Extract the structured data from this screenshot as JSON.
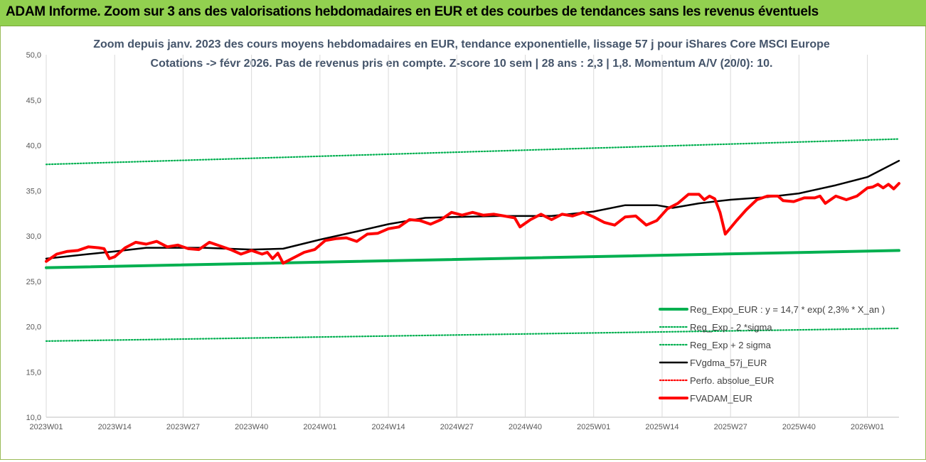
{
  "header": {
    "title": "ADAM Informe. Zoom sur 3 ans des valorisations hebdomadaires en EUR et des courbes de tendances sans les revenus éventuels"
  },
  "chart_data": {
    "type": "line",
    "title": "Zoom depuis janv. 2023 des cours moyens hebdomadaires en EUR, tendance exponentielle, lissage 57 j pour iShares Core MSCI Europe",
    "subtitle": "Cotations -> févr 2026. Pas de revenus pris en compte. Z-score 10 sem | 28 ans : 2,3 | 1,8. Momentum A/V (20/0): 10.",
    "xlabel": "",
    "ylabel": "",
    "ylim": [
      10,
      50
    ],
    "y_ticks": [
      "10,0",
      "15,0",
      "20,0",
      "25,0",
      "30,0",
      "35,0",
      "40,0",
      "45,0",
      "50,0"
    ],
    "x_tick_labels": [
      "2023W01",
      "2023W14",
      "2023W27",
      "2023W40",
      "2024W01",
      "2024W14",
      "2024W27",
      "2024W40",
      "2025W01",
      "2025W14",
      "2025W27",
      "2025W40",
      "2026W01"
    ],
    "grid": "vertical",
    "legend_position": "bottom-right",
    "x_weeks_total": 163,
    "series": [
      {
        "name": "Reg_Expo_EUR : y = 14,7 * exp( 2,3% *  X_an )",
        "color": "#00b050",
        "style": "solid-thick",
        "points": [
          [
            0,
            26.5
          ],
          [
            162,
            28.4
          ]
        ]
      },
      {
        "name": "Reg_Exp - 2 *sigma",
        "color": "#00b050",
        "style": "dotted",
        "points": [
          [
            0,
            18.4
          ],
          [
            162,
            19.8
          ]
        ]
      },
      {
        "name": "Reg_Exp + 2 sigma",
        "color": "#00b050",
        "style": "dotted",
        "points": [
          [
            0,
            37.9
          ],
          [
            162,
            40.7
          ]
        ]
      },
      {
        "name": "FVgdma_57j_EUR",
        "color": "#000000",
        "style": "solid",
        "points": [
          [
            0,
            27.5
          ],
          [
            8,
            28.0
          ],
          [
            13,
            28.3
          ],
          [
            19,
            28.7
          ],
          [
            30,
            28.7
          ],
          [
            39,
            28.5
          ],
          [
            45,
            28.6
          ],
          [
            52,
            29.6
          ],
          [
            59,
            30.5
          ],
          [
            65,
            31.3
          ],
          [
            72,
            32.0
          ],
          [
            78,
            32.1
          ],
          [
            86,
            32.2
          ],
          [
            96,
            32.2
          ],
          [
            104,
            32.7
          ],
          [
            110,
            33.4
          ],
          [
            116,
            33.4
          ],
          [
            119,
            33.1
          ],
          [
            124,
            33.6
          ],
          [
            130,
            34.0
          ],
          [
            137,
            34.3
          ],
          [
            143,
            34.7
          ],
          [
            150,
            35.6
          ],
          [
            156,
            36.5
          ],
          [
            162,
            38.3
          ]
        ]
      },
      {
        "name": "Perfo. absolue_EUR",
        "color": "#ff0000",
        "style": "dotted",
        "points": []
      },
      {
        "name": "FVADAM_EUR",
        "color": "#ff0000",
        "style": "solid-thick",
        "points": [
          [
            0,
            27.2
          ],
          [
            2,
            28.0
          ],
          [
            4,
            28.3
          ],
          [
            6,
            28.4
          ],
          [
            8,
            28.8
          ],
          [
            10,
            28.7
          ],
          [
            11,
            28.6
          ],
          [
            12,
            27.5
          ],
          [
            13,
            27.7
          ],
          [
            15,
            28.7
          ],
          [
            17,
            29.3
          ],
          [
            19,
            29.1
          ],
          [
            21,
            29.4
          ],
          [
            23,
            28.8
          ],
          [
            25,
            29.0
          ],
          [
            27,
            28.6
          ],
          [
            29,
            28.5
          ],
          [
            31,
            29.3
          ],
          [
            33,
            28.9
          ],
          [
            35,
            28.5
          ],
          [
            37,
            28.0
          ],
          [
            39,
            28.4
          ],
          [
            41,
            28.0
          ],
          [
            42,
            28.2
          ],
          [
            43,
            27.5
          ],
          [
            44,
            28.1
          ],
          [
            45,
            27.0
          ],
          [
            47,
            27.6
          ],
          [
            49,
            28.2
          ],
          [
            51,
            28.5
          ],
          [
            53,
            29.5
          ],
          [
            55,
            29.7
          ],
          [
            57,
            29.8
          ],
          [
            59,
            29.4
          ],
          [
            61,
            30.2
          ],
          [
            63,
            30.3
          ],
          [
            65,
            30.8
          ],
          [
            67,
            31.0
          ],
          [
            69,
            31.8
          ],
          [
            71,
            31.7
          ],
          [
            73,
            31.3
          ],
          [
            75,
            31.8
          ],
          [
            77,
            32.6
          ],
          [
            79,
            32.3
          ],
          [
            81,
            32.6
          ],
          [
            83,
            32.3
          ],
          [
            85,
            32.4
          ],
          [
            87,
            32.2
          ],
          [
            89,
            32.0
          ],
          [
            90,
            31.0
          ],
          [
            92,
            31.8
          ],
          [
            94,
            32.4
          ],
          [
            96,
            31.8
          ],
          [
            98,
            32.4
          ],
          [
            100,
            32.2
          ],
          [
            102,
            32.6
          ],
          [
            104,
            32.1
          ],
          [
            106,
            31.5
          ],
          [
            108,
            31.2
          ],
          [
            110,
            32.1
          ],
          [
            112,
            32.2
          ],
          [
            114,
            31.2
          ],
          [
            116,
            31.7
          ],
          [
            118,
            33.0
          ],
          [
            120,
            33.6
          ],
          [
            122,
            34.6
          ],
          [
            124,
            34.6
          ],
          [
            125,
            34.0
          ],
          [
            126,
            34.4
          ],
          [
            127,
            34.1
          ],
          [
            128,
            32.6
          ],
          [
            129,
            30.2
          ],
          [
            131,
            31.6
          ],
          [
            133,
            32.9
          ],
          [
            135,
            34.0
          ],
          [
            137,
            34.4
          ],
          [
            139,
            34.4
          ],
          [
            140,
            33.9
          ],
          [
            142,
            33.8
          ],
          [
            144,
            34.2
          ],
          [
            146,
            34.2
          ],
          [
            147,
            34.4
          ],
          [
            148,
            33.6
          ],
          [
            150,
            34.4
          ],
          [
            152,
            34.0
          ],
          [
            154,
            34.4
          ],
          [
            156,
            35.3
          ],
          [
            157,
            35.4
          ],
          [
            158,
            35.7
          ],
          [
            159,
            35.3
          ],
          [
            160,
            35.7
          ],
          [
            161,
            35.2
          ],
          [
            162,
            35.8
          ]
        ]
      }
    ]
  }
}
